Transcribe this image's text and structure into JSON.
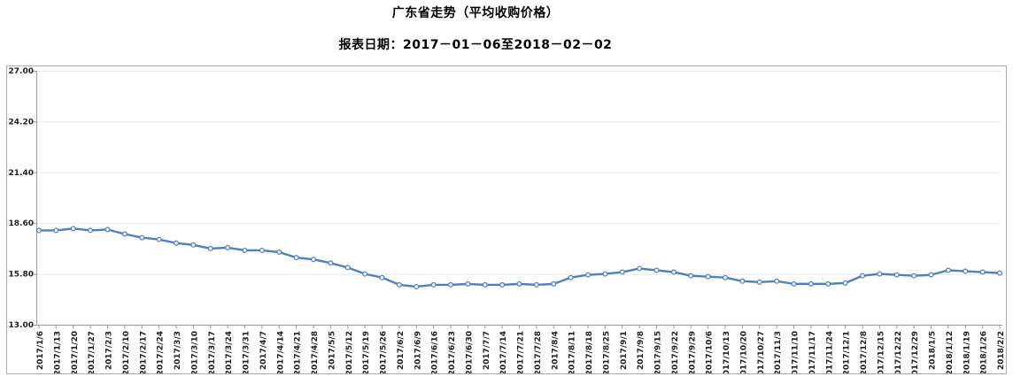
{
  "header": {
    "title": "广东省走势（平均收购价格）",
    "subtitle": "报表日期：2017－01－06至2018－02－02"
  },
  "chart_data": {
    "type": "line",
    "title": "广东省走势（平均收购价格）",
    "subtitle": "报表日期：2017－01－06至2018－02－02",
    "series_name": "平均收购价格",
    "xlabel": "",
    "ylabel": "",
    "ylim": [
      13.0,
      27.0
    ],
    "yticks": [
      27.0,
      24.2,
      21.4,
      18.6,
      15.8,
      13.0
    ],
    "ytick_labels": [
      "27.00",
      "24.20",
      "21.40",
      "18.60",
      "15.80",
      "13.00"
    ],
    "grid": "horizontal",
    "legend": "none",
    "marker": "circle",
    "categories": [
      "2017/1/6",
      "2017/1/13",
      "2017/1/20",
      "2017/1/27",
      "2017/2/3",
      "2017/2/10",
      "2017/2/17",
      "2017/2/24",
      "2017/3/3",
      "2017/3/10",
      "2017/3/17",
      "2017/3/24",
      "2017/3/31",
      "2017/4/7",
      "2017/4/14",
      "2017/4/21",
      "2017/4/28",
      "2017/5/5",
      "2017/5/12",
      "2017/5/19",
      "2017/5/26",
      "2017/6/2",
      "2017/6/9",
      "2017/6/16",
      "2017/6/23",
      "2017/6/30",
      "2017/7/7",
      "2017/7/14",
      "2017/7/21",
      "2017/7/28",
      "2017/8/4",
      "2017/8/11",
      "2017/8/18",
      "2017/8/25",
      "2017/9/1",
      "2017/9/8",
      "2017/9/15",
      "2017/9/22",
      "2017/9/29",
      "2017/10/6",
      "2017/10/13",
      "2017/10/20",
      "2017/10/27",
      "2017/11/3",
      "2017/11/10",
      "2017/11/17",
      "2017/11/24",
      "2017/12/1",
      "2017/12/8",
      "2017/12/15",
      "2017/12/22",
      "2017/12/29",
      "2018/1/5",
      "2018/1/12",
      "2018/1/19",
      "2018/1/26",
      "2018/2/2"
    ],
    "values": [
      18.2,
      18.2,
      18.3,
      18.2,
      18.25,
      18.0,
      17.8,
      17.7,
      17.5,
      17.4,
      17.2,
      17.25,
      17.1,
      17.1,
      17.0,
      16.7,
      16.6,
      16.4,
      16.15,
      15.8,
      15.6,
      15.2,
      15.1,
      15.2,
      15.2,
      15.25,
      15.2,
      15.2,
      15.25,
      15.2,
      15.25,
      15.6,
      15.75,
      15.8,
      15.9,
      16.1,
      16.0,
      15.9,
      15.7,
      15.65,
      15.6,
      15.4,
      15.35,
      15.4,
      15.25,
      15.25,
      15.25,
      15.3,
      15.7,
      15.8,
      15.75,
      15.7,
      15.75,
      16.0,
      15.95,
      15.9,
      15.85
    ],
    "colors": {
      "line": "#4F81BD",
      "marker_fill": "#EAF1F9",
      "grid": "#E4E9F0",
      "axis": "#9B9B9B",
      "tick_text": "#1F1F1F",
      "title_text": "#000000",
      "frame_border": "#ACACAC"
    }
  }
}
